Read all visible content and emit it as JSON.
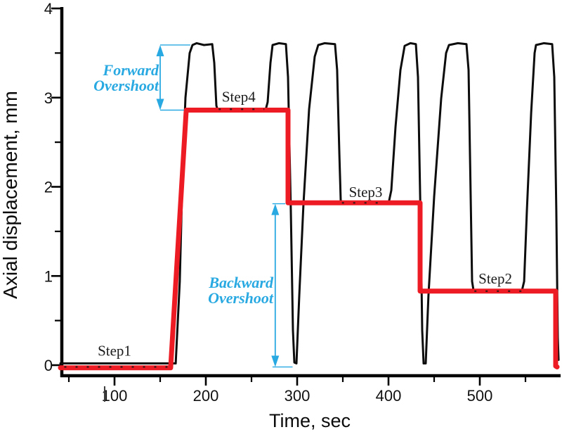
{
  "figure": {
    "background": "#ffffff",
    "axis_color": "#000000"
  },
  "chart_data": {
    "type": "line",
    "title": "",
    "xlabel": "Time, sec",
    "ylabel": "Axial displacement, mm",
    "xlim": [
      41,
      588
    ],
    "ylim": [
      -0.13,
      4.03
    ],
    "grid": false,
    "legend": "none",
    "x_major_ticks": [
      100,
      200,
      300,
      400,
      500
    ],
    "x_minor_ticks": [
      50,
      150,
      250,
      350,
      450,
      550
    ],
    "y_major_ticks": [
      0,
      1,
      2,
      3,
      4
    ],
    "y_minor_ticks": [
      0.5,
      1.5,
      2.5,
      3.5
    ],
    "series": [
      {
        "name": "measured-displacement",
        "color": "#0c0c0c",
        "width": 3,
        "points": [
          [
            40.8,
            0.02
          ],
          [
            167,
            0.02
          ],
          [
            171.5,
            0.94
          ],
          [
            174.6,
            2.2
          ],
          [
            177.7,
            3.0
          ],
          [
            182.3,
            3.5
          ],
          [
            185.4,
            3.59
          ],
          [
            190,
            3.61
          ],
          [
            198,
            3.59
          ],
          [
            207,
            3.6
          ],
          [
            209.2,
            3.39
          ],
          [
            211.5,
            2.91
          ],
          [
            213,
            2.86
          ],
          [
            265.4,
            2.86
          ],
          [
            267.7,
            2.95
          ],
          [
            270.8,
            3.39
          ],
          [
            273.1,
            3.59
          ],
          [
            280,
            3.61
          ],
          [
            287.7,
            3.6
          ],
          [
            290,
            3.23
          ],
          [
            293.1,
            1.73
          ],
          [
            295.4,
            0.39
          ],
          [
            296.9,
            0.03
          ],
          [
            299.2,
            0.02
          ],
          [
            302.3,
            0.78
          ],
          [
            306.9,
            1.81
          ],
          [
            313.1,
            2.87
          ],
          [
            319.2,
            3.46
          ],
          [
            323.1,
            3.59
          ],
          [
            330,
            3.61
          ],
          [
            341.5,
            3.6
          ],
          [
            343.8,
            3.31
          ],
          [
            346.2,
            2.36
          ],
          [
            347.7,
            1.85
          ],
          [
            349.2,
            1.81
          ],
          [
            400,
            1.81
          ],
          [
            403.1,
            1.96
          ],
          [
            407.7,
            2.67
          ],
          [
            413.1,
            3.31
          ],
          [
            417.7,
            3.58
          ],
          [
            424,
            3.61
          ],
          [
            430,
            3.6
          ],
          [
            432.3,
            3.23
          ],
          [
            435.4,
            1.49
          ],
          [
            436.9,
            0.39
          ],
          [
            438.5,
            0.02
          ],
          [
            440.8,
            0.02
          ],
          [
            443.8,
            0.78
          ],
          [
            450,
            1.89
          ],
          [
            457.7,
            2.99
          ],
          [
            463.1,
            3.5
          ],
          [
            466.2,
            3.59
          ],
          [
            476,
            3.61
          ],
          [
            485.4,
            3.6
          ],
          [
            487.7,
            3.31
          ],
          [
            490,
            1.89
          ],
          [
            491.5,
            0.94
          ],
          [
            493.1,
            0.84
          ],
          [
            546.2,
            0.84
          ],
          [
            548.5,
            0.94
          ],
          [
            551.5,
            1.73
          ],
          [
            556.2,
            2.83
          ],
          [
            560,
            3.5
          ],
          [
            561.5,
            3.59
          ],
          [
            570,
            3.61
          ],
          [
            579.2,
            3.6
          ],
          [
            581.5,
            3.23
          ],
          [
            583.8,
            1.73
          ],
          [
            585.4,
            0.31
          ],
          [
            586.2,
            0.06
          ]
        ]
      },
      {
        "name": "commanded-steps",
        "color": "#ed1c24",
        "width": 7,
        "points": [
          [
            40.8,
            -0.03
          ],
          [
            161.5,
            -0.03
          ],
          [
            178.5,
            2.86
          ],
          [
            290,
            2.86
          ],
          [
            290,
            1.82
          ],
          [
            434.6,
            1.82
          ],
          [
            434.6,
            0.83
          ],
          [
            583.1,
            0.83
          ],
          [
            583.1,
            -0.01
          ],
          [
            584.6,
            -0.02
          ]
        ]
      }
    ],
    "speckle_overlays": [
      {
        "level": -0.02,
        "from": 45,
        "to": 158
      },
      {
        "level": 2.87,
        "from": 214,
        "to": 264
      },
      {
        "level": 1.82,
        "from": 349,
        "to": 398
      },
      {
        "level": 0.83,
        "from": 494,
        "to": 546
      }
    ],
    "annotations": {
      "forward": {
        "label_line1": "Forward",
        "label_line2": "Overshoot",
        "color": "#29a9e1",
        "arrow_t": 150,
        "v_from": 2.86,
        "v_to": 3.59,
        "top_guide_to_t": 183,
        "bottom_guide_to_t": 176
      },
      "backward": {
        "label_line1": "Backward",
        "label_line2": "Overshoot",
        "color": "#29a9e1",
        "arrow_t": 276,
        "v_from": -0.02,
        "v_to": 1.81,
        "top_guide_to_t": 287,
        "bottom_guide_from_t": 273,
        "bottom_guide_to_t": 295
      }
    },
    "step_labels": [
      {
        "text": "Step1",
        "t": 100,
        "v": 0.16
      },
      {
        "text": "Step4",
        "t": 236,
        "v": 3.01
      },
      {
        "text": "Step3",
        "t": 375,
        "v": 1.94
      },
      {
        "text": "Step2",
        "t": 517,
        "v": 0.97
      }
    ],
    "stray_mark": {
      "present": true,
      "t": 89.2
    }
  }
}
